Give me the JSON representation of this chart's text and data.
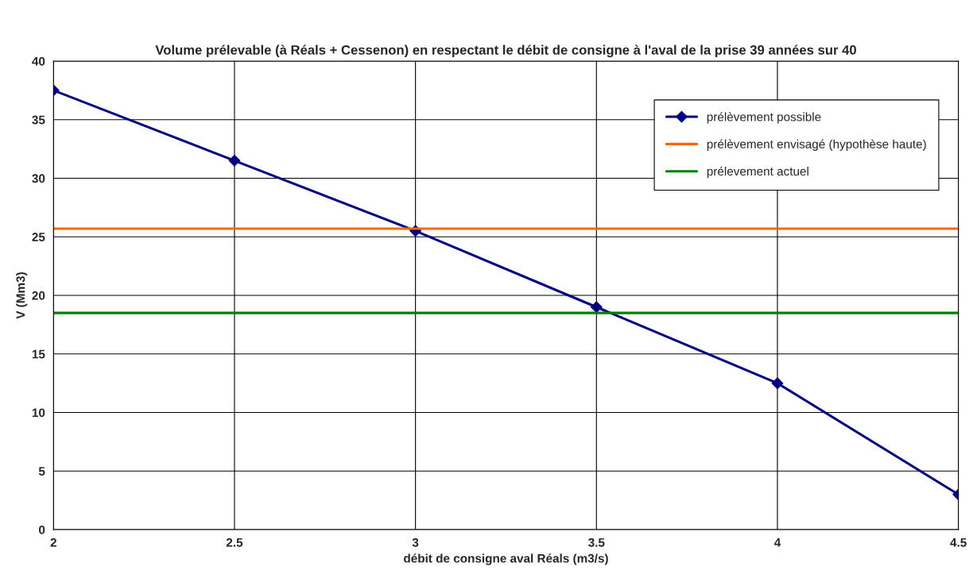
{
  "chart_data": {
    "type": "line",
    "title": "Volume prélevable (à Réals + Cessenon) en respectant le débit de consigne à l'aval de la prise 39 années sur 40",
    "xlabel": "débit de consigne aval Réals (m3/s)",
    "ylabel": "V (Mm3)",
    "series": [
      {
        "name": "prélèvement possible",
        "color": "#000080",
        "marker": "diamond",
        "x": [
          2,
          2.5,
          3,
          3.5,
          4,
          4.5
        ],
        "values": [
          37.5,
          31.5,
          25.5,
          19,
          12.5,
          3
        ]
      },
      {
        "name": "prélèvement envisagé (hypothèse haute)",
        "color": "#ff6600",
        "marker": "none",
        "x": [
          2,
          4.5
        ],
        "values": [
          25.7,
          25.7
        ]
      },
      {
        "name": "prélevement actuel",
        "color": "#008000",
        "marker": "none",
        "x": [
          2,
          4.5
        ],
        "values": [
          18.5,
          18.5
        ]
      }
    ],
    "xlim": [
      2,
      4.5
    ],
    "xticks": [
      2,
      2.5,
      3,
      3.5,
      4,
      4.5
    ],
    "ylim": [
      0,
      40
    ],
    "yticks": [
      0,
      5,
      10,
      15,
      20,
      25,
      30,
      35,
      40
    ],
    "grid": true,
    "legend": "top right"
  }
}
